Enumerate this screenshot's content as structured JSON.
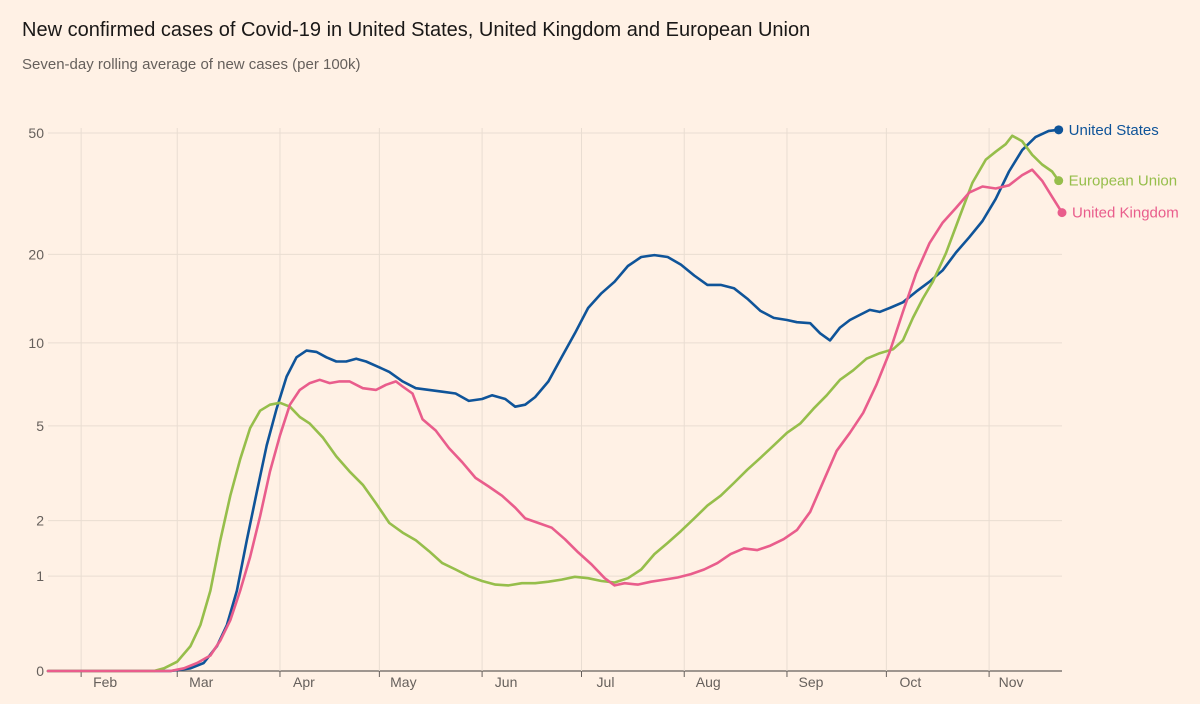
{
  "header": {
    "title": "New confirmed cases of Covid-19 in United States, United Kingdom and European Union",
    "subtitle": "Seven-day rolling average of new cases (per 100k)"
  },
  "colors": {
    "background": "#fff1e5",
    "grid": "#e9ddd2",
    "axis": "#66605c",
    "united_states": "#0f5499",
    "european_union": "#96be4b",
    "united_kingdom": "#e95d8c"
  },
  "chart_data": {
    "type": "line",
    "title": "New confirmed cases of Covid-19 in United States, United Kingdom and European Union",
    "subtitle": "Seven-day rolling average of new cases (per 100k)",
    "x_unit": "date (2020)",
    "x_ticks": [
      "Feb",
      "Mar",
      "Apr",
      "May",
      "Jun",
      "Jul",
      "Aug",
      "Sep",
      "Oct",
      "Nov"
    ],
    "x_tick_dates": [
      "2020-02-01",
      "2020-03-01",
      "2020-04-01",
      "2020-05-01",
      "2020-06-01",
      "2020-07-01",
      "2020-08-01",
      "2020-09-01",
      "2020-10-01",
      "2020-11-01"
    ],
    "xlim": [
      "2020-01-22",
      "2020-11-23"
    ],
    "y_scale": "log",
    "y_ticks": [
      0,
      1,
      2,
      5,
      10,
      20,
      50
    ],
    "ylim": [
      0,
      50
    ],
    "grid": "both",
    "legend": "direct labels at line ends",
    "series": [
      {
        "name": "United States",
        "color": "#0f5499",
        "points": [
          [
            "2020-01-22",
            0
          ],
          [
            "2020-02-28",
            0
          ],
          [
            "2020-03-05",
            0.02
          ],
          [
            "2020-03-09",
            0.06
          ],
          [
            "2020-03-13",
            0.2
          ],
          [
            "2020-03-16",
            0.4
          ],
          [
            "2020-03-19",
            0.8
          ],
          [
            "2020-03-22",
            1.6
          ],
          [
            "2020-03-25",
            2.7
          ],
          [
            "2020-03-28",
            4.2
          ],
          [
            "2020-03-31",
            5.8
          ],
          [
            "2020-04-03",
            7.6
          ],
          [
            "2020-04-06",
            8.9
          ],
          [
            "2020-04-09",
            9.4
          ],
          [
            "2020-04-12",
            9.3
          ],
          [
            "2020-04-15",
            8.9
          ],
          [
            "2020-04-18",
            8.6
          ],
          [
            "2020-04-21",
            8.6
          ],
          [
            "2020-04-24",
            8.8
          ],
          [
            "2020-04-27",
            8.6
          ],
          [
            "2020-04-30",
            8.3
          ],
          [
            "2020-05-04",
            7.9
          ],
          [
            "2020-05-08",
            7.3
          ],
          [
            "2020-05-12",
            6.9
          ],
          [
            "2020-05-16",
            6.8
          ],
          [
            "2020-05-20",
            6.7
          ],
          [
            "2020-05-24",
            6.6
          ],
          [
            "2020-05-28",
            6.2
          ],
          [
            "2020-06-01",
            6.3
          ],
          [
            "2020-06-04",
            6.5
          ],
          [
            "2020-06-08",
            6.3
          ],
          [
            "2020-06-11",
            5.9
          ],
          [
            "2020-06-14",
            6.0
          ],
          [
            "2020-06-17",
            6.4
          ],
          [
            "2020-06-21",
            7.3
          ],
          [
            "2020-06-25",
            8.9
          ],
          [
            "2020-06-29",
            10.8
          ],
          [
            "2020-07-03",
            13.2
          ],
          [
            "2020-07-07",
            14.8
          ],
          [
            "2020-07-11",
            16.2
          ],
          [
            "2020-07-15",
            18.3
          ],
          [
            "2020-07-19",
            19.6
          ],
          [
            "2020-07-23",
            19.9
          ],
          [
            "2020-07-27",
            19.6
          ],
          [
            "2020-07-31",
            18.5
          ],
          [
            "2020-08-04",
            17.0
          ],
          [
            "2020-08-08",
            15.8
          ],
          [
            "2020-08-12",
            15.8
          ],
          [
            "2020-08-16",
            15.4
          ],
          [
            "2020-08-20",
            14.2
          ],
          [
            "2020-08-24",
            12.9
          ],
          [
            "2020-08-28",
            12.2
          ],
          [
            "2020-09-01",
            12.0
          ],
          [
            "2020-09-04",
            11.8
          ],
          [
            "2020-09-08",
            11.7
          ],
          [
            "2020-09-11",
            10.8
          ],
          [
            "2020-09-14",
            10.2
          ],
          [
            "2020-09-17",
            11.3
          ],
          [
            "2020-09-20",
            12.0
          ],
          [
            "2020-09-23",
            12.5
          ],
          [
            "2020-09-26",
            13.0
          ],
          [
            "2020-09-29",
            12.8
          ],
          [
            "2020-10-02",
            13.2
          ],
          [
            "2020-10-06",
            13.8
          ],
          [
            "2020-10-10",
            15.0
          ],
          [
            "2020-10-14",
            16.2
          ],
          [
            "2020-10-18",
            17.7
          ],
          [
            "2020-10-22",
            20.3
          ],
          [
            "2020-10-26",
            22.8
          ],
          [
            "2020-10-30",
            25.8
          ],
          [
            "2020-11-03",
            30.5
          ],
          [
            "2020-11-07",
            37.5
          ],
          [
            "2020-11-11",
            44.0
          ],
          [
            "2020-11-15",
            48.5
          ],
          [
            "2020-11-19",
            50.8
          ],
          [
            "2020-11-22",
            51.2
          ]
        ]
      },
      {
        "name": "European Union",
        "color": "#96be4b",
        "points": [
          [
            "2020-01-22",
            0
          ],
          [
            "2020-02-23",
            0
          ],
          [
            "2020-02-26",
            0.02
          ],
          [
            "2020-03-01",
            0.07
          ],
          [
            "2020-03-05",
            0.2
          ],
          [
            "2020-03-08",
            0.4
          ],
          [
            "2020-03-11",
            0.8
          ],
          [
            "2020-03-14",
            1.6
          ],
          [
            "2020-03-17",
            2.6
          ],
          [
            "2020-03-20",
            3.7
          ],
          [
            "2020-03-23",
            4.9
          ],
          [
            "2020-03-26",
            5.7
          ],
          [
            "2020-03-29",
            6.0
          ],
          [
            "2020-04-01",
            6.1
          ],
          [
            "2020-04-04",
            5.9
          ],
          [
            "2020-04-07",
            5.4
          ],
          [
            "2020-04-10",
            5.1
          ],
          [
            "2020-04-14",
            4.5
          ],
          [
            "2020-04-18",
            3.8
          ],
          [
            "2020-04-22",
            3.3
          ],
          [
            "2020-04-26",
            2.9
          ],
          [
            "2020-04-30",
            2.4
          ],
          [
            "2020-05-04",
            1.95
          ],
          [
            "2020-05-08",
            1.75
          ],
          [
            "2020-05-12",
            1.6
          ],
          [
            "2020-05-16",
            1.4
          ],
          [
            "2020-05-20",
            1.2
          ],
          [
            "2020-05-24",
            1.1
          ],
          [
            "2020-05-28",
            1.0
          ],
          [
            "2020-06-01",
            0.93
          ],
          [
            "2020-06-05",
            0.88
          ],
          [
            "2020-06-09",
            0.87
          ],
          [
            "2020-06-13",
            0.9
          ],
          [
            "2020-06-17",
            0.9
          ],
          [
            "2020-06-21",
            0.92
          ],
          [
            "2020-06-25",
            0.95
          ],
          [
            "2020-06-29",
            0.99
          ],
          [
            "2020-07-03",
            0.97
          ],
          [
            "2020-07-07",
            0.93
          ],
          [
            "2020-07-11",
            0.91
          ],
          [
            "2020-07-15",
            0.97
          ],
          [
            "2020-07-19",
            1.1
          ],
          [
            "2020-07-23",
            1.35
          ],
          [
            "2020-07-27",
            1.55
          ],
          [
            "2020-07-31",
            1.78
          ],
          [
            "2020-08-04",
            2.05
          ],
          [
            "2020-08-08",
            2.35
          ],
          [
            "2020-08-12",
            2.6
          ],
          [
            "2020-08-16",
            2.95
          ],
          [
            "2020-08-20",
            3.35
          ],
          [
            "2020-08-24",
            3.75
          ],
          [
            "2020-08-28",
            4.2
          ],
          [
            "2020-09-01",
            4.7
          ],
          [
            "2020-09-05",
            5.1
          ],
          [
            "2020-09-09",
            5.8
          ],
          [
            "2020-09-13",
            6.5
          ],
          [
            "2020-09-17",
            7.4
          ],
          [
            "2020-09-21",
            8.0
          ],
          [
            "2020-09-25",
            8.8
          ],
          [
            "2020-09-29",
            9.2
          ],
          [
            "2020-10-03",
            9.5
          ],
          [
            "2020-10-06",
            10.2
          ],
          [
            "2020-10-09",
            12.2
          ],
          [
            "2020-10-12",
            14.2
          ],
          [
            "2020-10-15",
            16.2
          ],
          [
            "2020-10-19",
            20.2
          ],
          [
            "2020-10-23",
            26.5
          ],
          [
            "2020-10-27",
            34.5
          ],
          [
            "2020-10-31",
            41.0
          ],
          [
            "2020-11-03",
            43.5
          ],
          [
            "2020-11-06",
            46.0
          ],
          [
            "2020-11-08",
            49.0
          ],
          [
            "2020-11-11",
            47.0
          ],
          [
            "2020-11-14",
            42.5
          ],
          [
            "2020-11-17",
            39.5
          ],
          [
            "2020-11-20",
            37.5
          ],
          [
            "2020-11-22",
            35.0
          ]
        ]
      },
      {
        "name": "United Kingdom",
        "color": "#e95d8c",
        "points": [
          [
            "2020-01-22",
            0
          ],
          [
            "2020-02-28",
            0
          ],
          [
            "2020-03-03",
            0.02
          ],
          [
            "2020-03-07",
            0.06
          ],
          [
            "2020-03-11",
            0.12
          ],
          [
            "2020-03-14",
            0.25
          ],
          [
            "2020-03-17",
            0.45
          ],
          [
            "2020-03-20",
            0.8
          ],
          [
            "2020-03-23",
            1.3
          ],
          [
            "2020-03-26",
            2.1
          ],
          [
            "2020-03-29",
            3.3
          ],
          [
            "2020-04-01",
            4.6
          ],
          [
            "2020-04-04",
            6.0
          ],
          [
            "2020-04-07",
            6.8
          ],
          [
            "2020-04-10",
            7.2
          ],
          [
            "2020-04-13",
            7.4
          ],
          [
            "2020-04-16",
            7.2
          ],
          [
            "2020-04-19",
            7.3
          ],
          [
            "2020-04-22",
            7.3
          ],
          [
            "2020-04-26",
            6.9
          ],
          [
            "2020-04-30",
            6.8
          ],
          [
            "2020-05-03",
            7.1
          ],
          [
            "2020-05-06",
            7.3
          ],
          [
            "2020-05-08",
            7.0
          ],
          [
            "2020-05-11",
            6.6
          ],
          [
            "2020-05-14",
            5.3
          ],
          [
            "2020-05-18",
            4.8
          ],
          [
            "2020-05-22",
            4.1
          ],
          [
            "2020-05-26",
            3.6
          ],
          [
            "2020-05-30",
            3.1
          ],
          [
            "2020-06-03",
            2.85
          ],
          [
            "2020-06-07",
            2.6
          ],
          [
            "2020-06-11",
            2.3
          ],
          [
            "2020-06-14",
            2.05
          ],
          [
            "2020-06-18",
            1.95
          ],
          [
            "2020-06-22",
            1.85
          ],
          [
            "2020-06-26",
            1.62
          ],
          [
            "2020-06-30",
            1.38
          ],
          [
            "2020-07-04",
            1.18
          ],
          [
            "2020-07-08",
            0.97
          ],
          [
            "2020-07-11",
            0.87
          ],
          [
            "2020-07-14",
            0.9
          ],
          [
            "2020-07-18",
            0.88
          ],
          [
            "2020-07-22",
            0.92
          ],
          [
            "2020-07-26",
            0.95
          ],
          [
            "2020-07-30",
            0.98
          ],
          [
            "2020-08-03",
            1.03
          ],
          [
            "2020-08-07",
            1.1
          ],
          [
            "2020-08-11",
            1.2
          ],
          [
            "2020-08-15",
            1.35
          ],
          [
            "2020-08-19",
            1.45
          ],
          [
            "2020-08-23",
            1.42
          ],
          [
            "2020-08-27",
            1.5
          ],
          [
            "2020-08-31",
            1.62
          ],
          [
            "2020-09-04",
            1.8
          ],
          [
            "2020-09-08",
            2.2
          ],
          [
            "2020-09-12",
            3.0
          ],
          [
            "2020-09-16",
            4.0
          ],
          [
            "2020-09-20",
            4.7
          ],
          [
            "2020-09-24",
            5.6
          ],
          [
            "2020-09-28",
            7.1
          ],
          [
            "2020-10-02",
            9.3
          ],
          [
            "2020-10-06",
            12.8
          ],
          [
            "2020-10-10",
            17.3
          ],
          [
            "2020-10-14",
            21.8
          ],
          [
            "2020-10-18",
            25.5
          ],
          [
            "2020-10-22",
            28.5
          ],
          [
            "2020-10-26",
            32.0
          ],
          [
            "2020-10-30",
            33.5
          ],
          [
            "2020-11-03",
            33.0
          ],
          [
            "2020-11-07",
            33.8
          ],
          [
            "2020-11-11",
            36.5
          ],
          [
            "2020-11-14",
            38.0
          ],
          [
            "2020-11-17",
            35.0
          ],
          [
            "2020-11-20",
            31.0
          ],
          [
            "2020-11-23",
            27.5
          ]
        ]
      }
    ]
  }
}
